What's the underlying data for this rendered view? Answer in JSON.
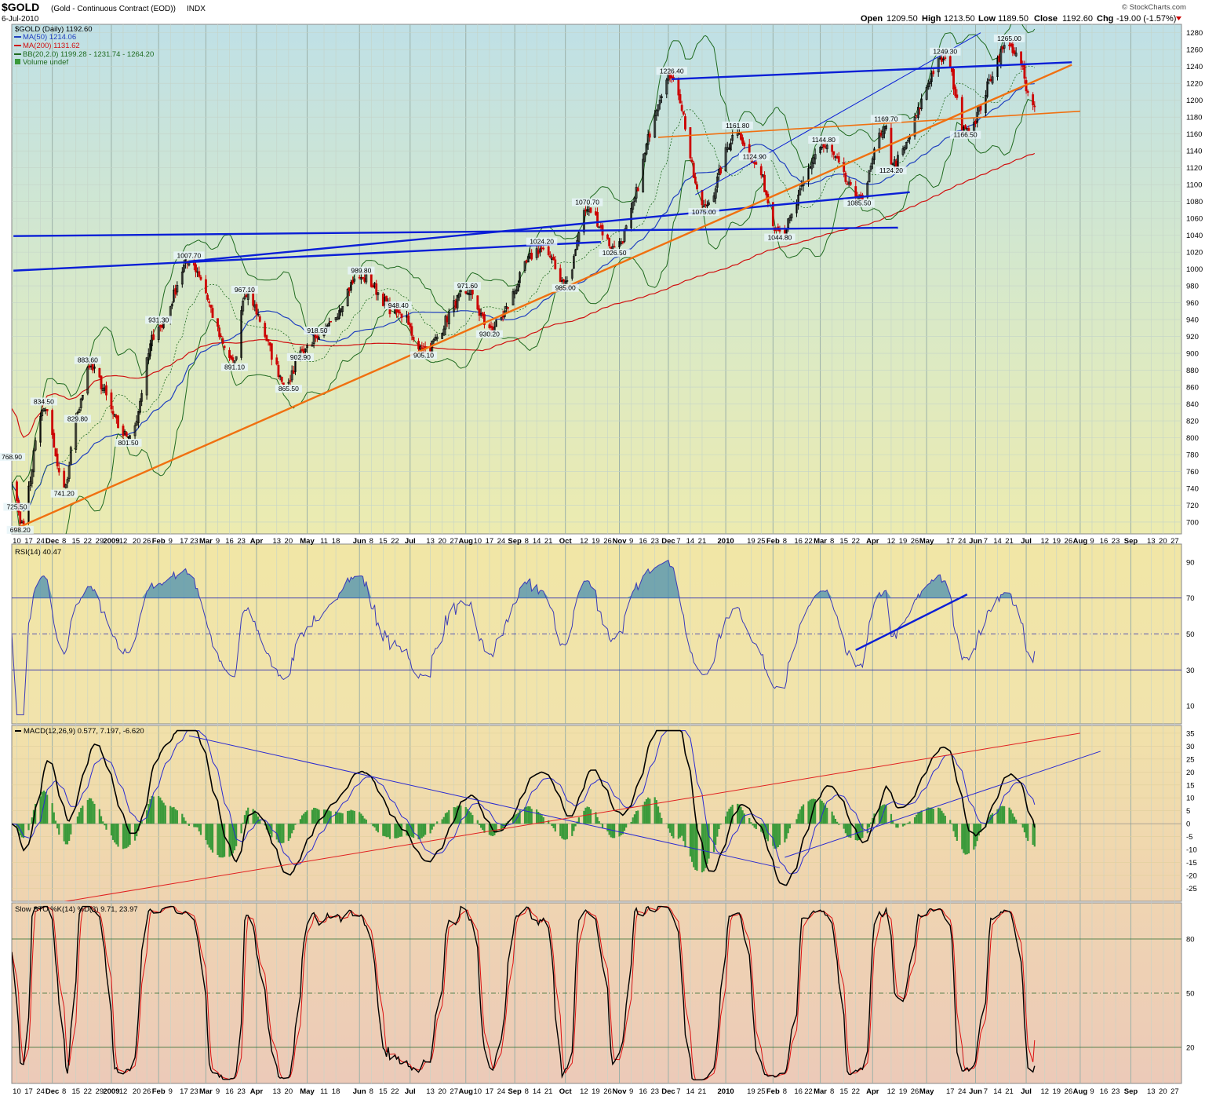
{
  "header": {
    "symbol": "$GOLD",
    "name": "(Gold - Continuous Contract (EOD))",
    "exchange": "INDX",
    "date": "6-Jul-2010",
    "brand": "© StockCharts.com",
    "open_label": "Open",
    "open": "1209.50",
    "high_label": "High",
    "high": "1213.50",
    "low_label": "Low",
    "low": "1189.50",
    "close_label": "Close",
    "close": "1192.60",
    "chg_label": "Chg",
    "chg": "-19.00 (-1.57%)"
  },
  "colors": {
    "price": "#222222",
    "up_candle": "#000000",
    "down_candle": "#cc0000",
    "ma50": "#1f3fbf",
    "ma200": "#d01010",
    "bb": "#1f6a1f",
    "trend_blue": "#0a1fd6",
    "trend_orange": "#f07010",
    "rsi": "#3a3ab8",
    "macd": "#000000",
    "signal": "#2a2ad0",
    "hist": "#3a9a3a",
    "stok": "#000000",
    "stod": "#dd1111"
  },
  "chart_data": [
    {
      "panel": "price",
      "type": "candlestick",
      "legend": [
        {
          "label": "$GOLD (Daily) 1192.60",
          "color": "#000000"
        },
        {
          "label": "MA(50) 1214.06",
          "color": "#1f3fbf"
        },
        {
          "label": "MA(200) 1131.62",
          "color": "#d01010"
        },
        {
          "label": "BB(20,2.0) 1199.28 - 1231.74 - 1264.20",
          "color": "#1f6a1f"
        },
        {
          "label": "Volume undef",
          "color": "#1f6a1f"
        }
      ],
      "y_ticks": [
        700,
        720,
        740,
        760,
        780,
        800,
        820,
        840,
        860,
        880,
        900,
        920,
        940,
        960,
        980,
        1000,
        1020,
        1040,
        1060,
        1080,
        1100,
        1120,
        1140,
        1160,
        1180,
        1200,
        1220,
        1240,
        1260,
        1280
      ],
      "ylim": [
        686,
        1290
      ],
      "xlim": [
        "2008-11-07",
        "2010-10-01"
      ],
      "pivots": [
        {
          "date": "2008-11-10",
          "value": 725.5,
          "label": "725.50",
          "side": "low"
        },
        {
          "date": "2008-11-12",
          "value": 698.2,
          "label": "698.20",
          "side": "low"
        },
        {
          "date": "2008-11-07",
          "value": 768.9,
          "label": "768.90",
          "side": "high"
        },
        {
          "date": "2008-11-26",
          "value": 834.5,
          "label": "834.50",
          "side": "high"
        },
        {
          "date": "2008-12-08",
          "value": 741.2,
          "label": "741.20",
          "side": "low"
        },
        {
          "date": "2008-12-22",
          "value": 883.6,
          "label": "883.60",
          "side": "high"
        },
        {
          "date": "2008-12-16",
          "value": 829.8,
          "label": "829.80",
          "side": "low"
        },
        {
          "date": "2009-01-15",
          "value": 801.5,
          "label": "801.50",
          "side": "low"
        },
        {
          "date": "2009-02-02",
          "value": 931.3,
          "label": "931.30",
          "side": "high"
        },
        {
          "date": "2009-02-20",
          "value": 1007.7,
          "label": "1007.70",
          "side": "high"
        },
        {
          "date": "2009-03-19",
          "value": 891.1,
          "label": "891.10",
          "side": "low"
        },
        {
          "date": "2009-03-25",
          "value": 967.1,
          "label": "967.10",
          "side": "high"
        },
        {
          "date": "2009-04-20",
          "value": 865.5,
          "label": "865.50",
          "side": "low"
        },
        {
          "date": "2009-04-27",
          "value": 902.9,
          "label": "902.90",
          "side": "low"
        },
        {
          "date": "2009-05-07",
          "value": 918.5,
          "label": "918.50",
          "side": "high"
        },
        {
          "date": "2009-06-02",
          "value": 989.8,
          "label": "989.80",
          "side": "high"
        },
        {
          "date": "2009-06-24",
          "value": 948.4,
          "label": "948.40",
          "side": "high"
        },
        {
          "date": "2009-07-09",
          "value": 905.1,
          "label": "905.10",
          "side": "low"
        },
        {
          "date": "2009-08-04",
          "value": 971.6,
          "label": "971.60",
          "side": "high"
        },
        {
          "date": "2009-08-17",
          "value": 930.2,
          "label": "930.20",
          "side": "low"
        },
        {
          "date": "2009-09-17",
          "value": 1024.2,
          "label": "1024.20",
          "side": "high"
        },
        {
          "date": "2009-10-01",
          "value": 985.0,
          "label": "985.00",
          "side": "low"
        },
        {
          "date": "2009-10-14",
          "value": 1070.7,
          "label": "1070.70",
          "side": "high"
        },
        {
          "date": "2009-10-30",
          "value": 1026.5,
          "label": "1026.50",
          "side": "low"
        },
        {
          "date": "2009-12-03",
          "value": 1226.4,
          "label": "1226.40",
          "side": "high"
        },
        {
          "date": "2009-12-22",
          "value": 1075.0,
          "label": "1075.00",
          "side": "low"
        },
        {
          "date": "2010-01-11",
          "value": 1161.8,
          "label": "1161.80",
          "side": "high"
        },
        {
          "date": "2010-01-21",
          "value": 1124.9,
          "label": "1124.90",
          "side": "high"
        },
        {
          "date": "2010-02-05",
          "value": 1044.8,
          "label": "1044.80",
          "side": "low"
        },
        {
          "date": "2010-03-03",
          "value": 1144.8,
          "label": "1144.80",
          "side": "high"
        },
        {
          "date": "2010-03-24",
          "value": 1085.5,
          "label": "1085.50",
          "side": "low"
        },
        {
          "date": "2010-04-09",
          "value": 1169.7,
          "label": "1169.70",
          "side": "high"
        },
        {
          "date": "2010-04-12",
          "value": 1124.2,
          "label": "1124.20",
          "side": "low"
        },
        {
          "date": "2010-05-14",
          "value": 1249.3,
          "label": "1249.30",
          "side": "high"
        },
        {
          "date": "2010-05-26",
          "value": 1166.5,
          "label": "1166.50",
          "side": "low"
        },
        {
          "date": "2010-06-21",
          "value": 1265.0,
          "label": "1265.00",
          "side": "high"
        }
      ],
      "last_close": {
        "date": "2010-07-06",
        "value": 1192.6
      },
      "trendlines": [
        {
          "color": "#0a1fd6",
          "width": 2.4,
          "from": [
            "2008-11-08",
            1039
          ],
          "to": [
            "2010-04-16",
            1049
          ]
        },
        {
          "color": "#0a1fd6",
          "width": 2.4,
          "from": [
            "2008-11-08",
            998
          ],
          "to": [
            "2009-10-22",
            1032
          ]
        },
        {
          "color": "#0a1fd6",
          "width": 2.4,
          "from": [
            "2009-02-20",
            1009
          ],
          "to": [
            "2010-04-23",
            1091
          ]
        },
        {
          "color": "#0a1fd6",
          "width": 2.4,
          "from": [
            "2009-12-03",
            1225
          ],
          "to": [
            "2010-07-28",
            1245
          ]
        },
        {
          "color": "#0a1fd6",
          "width": 1,
          "from": [
            "2009-12-17",
            1088
          ],
          "to": [
            "2010-06-04",
            1280
          ]
        },
        {
          "color": "#f07010",
          "width": 2.4,
          "from": [
            "2008-11-08",
            691
          ],
          "to": [
            "2010-07-28",
            1242
          ]
        },
        {
          "color": "#f07010",
          "width": 1.6,
          "from": [
            "2009-11-25",
            1156
          ],
          "to": [
            "2010-08-02",
            1187
          ]
        }
      ]
    },
    {
      "panel": "rsi",
      "type": "line",
      "legend": [
        {
          "label": "RSI(14) 40.47",
          "color": "#3a3ab8"
        }
      ],
      "y_ticks": [
        10,
        30,
        50,
        70,
        90
      ],
      "ylim": [
        0,
        100
      ],
      "levels": [
        30,
        50,
        70
      ],
      "last": 40.47,
      "trendline": {
        "from": [
          "2010-03-22",
          41
        ],
        "to": [
          "2010-05-27",
          72
        ]
      }
    },
    {
      "panel": "macd",
      "type": "line+histogram",
      "legend": [
        {
          "label": "MACD(12,26,9) 0.577, 7.197, -6.620",
          "color": "#000000"
        }
      ],
      "macd_last": 0.577,
      "signal_last": 7.197,
      "hist_last": -6.62,
      "y_ticks": [
        -25,
        -20,
        -15,
        -10,
        -5,
        0,
        5,
        10,
        15,
        20,
        25,
        30,
        35
      ],
      "ylim": [
        -30,
        38
      ],
      "trendlines": [
        {
          "color": "#2a2ad0",
          "from": [
            "2009-02-20",
            34
          ],
          "to": [
            "2010-02-05",
            -17
          ]
        },
        {
          "color": "#e02020",
          "from": [
            "2008-11-30",
            -31
          ],
          "to": [
            "2010-08-02",
            35
          ]
        },
        {
          "color": "#2a2ad0",
          "from": [
            "2010-02-08",
            -13
          ],
          "to": [
            "2010-08-14",
            28
          ]
        }
      ]
    },
    {
      "panel": "stochastic",
      "type": "line",
      "legend": [
        {
          "label": "Slow STO %K(14) %D(3) 9.71, 23.97",
          "color": "#000000"
        }
      ],
      "k_last": 9.71,
      "d_last": 23.97,
      "y_ticks": [
        20,
        50,
        80
      ],
      "ylim": [
        0,
        100
      ],
      "levels": [
        20,
        50,
        80
      ]
    }
  ],
  "x_axis": {
    "ticks": [
      [
        "2008-11-10",
        "10"
      ],
      [
        "2008-11-17",
        "17"
      ],
      [
        "2008-11-24",
        "24"
      ],
      [
        "2008-12-01",
        "Dec"
      ],
      [
        "2008-12-08",
        "8"
      ],
      [
        "2008-12-15",
        "15"
      ],
      [
        "2008-12-22",
        "22"
      ],
      [
        "2008-12-29",
        "29"
      ],
      [
        "2009-01-05",
        "2009"
      ],
      [
        "2009-01-12",
        "12"
      ],
      [
        "2009-01-20",
        "20"
      ],
      [
        "2009-01-26",
        "26"
      ],
      [
        "2009-02-02",
        "Feb"
      ],
      [
        "2009-02-09",
        "9"
      ],
      [
        "2009-02-17",
        "17"
      ],
      [
        "2009-02-23",
        "23"
      ],
      [
        "2009-03-02",
        "Mar"
      ],
      [
        "2009-03-09",
        "9"
      ],
      [
        "2009-03-16",
        "16"
      ],
      [
        "2009-03-23",
        "23"
      ],
      [
        "2009-04-01",
        "Apr"
      ],
      [
        "2009-04-13",
        "13"
      ],
      [
        "2009-04-20",
        "20"
      ],
      [
        "2009-05-01",
        "May"
      ],
      [
        "2009-05-11",
        "11"
      ],
      [
        "2009-05-18",
        "18"
      ],
      [
        "2009-06-01",
        "Jun"
      ],
      [
        "2009-06-08",
        "8"
      ],
      [
        "2009-06-15",
        "15"
      ],
      [
        "2009-06-22",
        "22"
      ],
      [
        "2009-07-01",
        "Jul"
      ],
      [
        "2009-07-13",
        "13"
      ],
      [
        "2009-07-20",
        "20"
      ],
      [
        "2009-07-27",
        "27"
      ],
      [
        "2009-08-03",
        "Aug"
      ],
      [
        "2009-08-10",
        "10"
      ],
      [
        "2009-08-17",
        "17"
      ],
      [
        "2009-08-24",
        "24"
      ],
      [
        "2009-09-01",
        "Sep"
      ],
      [
        "2009-09-08",
        "8"
      ],
      [
        "2009-09-14",
        "14"
      ],
      [
        "2009-09-21",
        "21"
      ],
      [
        "2009-10-01",
        "Oct"
      ],
      [
        "2009-10-12",
        "12"
      ],
      [
        "2009-10-19",
        "19"
      ],
      [
        "2009-10-26",
        "26"
      ],
      [
        "2009-11-02",
        "Nov"
      ],
      [
        "2009-11-09",
        "9"
      ],
      [
        "2009-11-16",
        "16"
      ],
      [
        "2009-11-23",
        "23"
      ],
      [
        "2009-12-01",
        "Dec"
      ],
      [
        "2009-12-07",
        "7"
      ],
      [
        "2009-12-14",
        "14"
      ],
      [
        "2009-12-21",
        "21"
      ],
      [
        "2010-01-04",
        "2010"
      ],
      [
        "2010-01-19",
        "19"
      ],
      [
        "2010-01-25",
        "25"
      ],
      [
        "2010-02-01",
        "Feb"
      ],
      [
        "2010-02-08",
        "8"
      ],
      [
        "2010-02-16",
        "16"
      ],
      [
        "2010-02-22",
        "22"
      ],
      [
        "2010-03-01",
        "Mar"
      ],
      [
        "2010-03-08",
        "8"
      ],
      [
        "2010-03-15",
        "15"
      ],
      [
        "2010-03-22",
        "22"
      ],
      [
        "2010-04-01",
        "Apr"
      ],
      [
        "2010-04-12",
        "12"
      ],
      [
        "2010-04-19",
        "19"
      ],
      [
        "2010-04-26",
        "26"
      ],
      [
        "2010-05-03",
        "May"
      ],
      [
        "2010-05-17",
        "17"
      ],
      [
        "2010-05-24",
        "24"
      ],
      [
        "2010-06-01",
        "Jun"
      ],
      [
        "2010-06-07",
        "7"
      ],
      [
        "2010-06-14",
        "14"
      ],
      [
        "2010-06-21",
        "21"
      ],
      [
        "2010-07-01",
        "Jul"
      ],
      [
        "2010-07-12",
        "12"
      ],
      [
        "2010-07-19",
        "19"
      ],
      [
        "2010-07-26",
        "26"
      ],
      [
        "2010-08-02",
        "Aug"
      ],
      [
        "2010-08-09",
        "9"
      ],
      [
        "2010-08-16",
        "16"
      ],
      [
        "2010-08-23",
        "23"
      ],
      [
        "2010-09-01",
        "Sep"
      ],
      [
        "2010-09-13",
        "13"
      ],
      [
        "2010-09-20",
        "20"
      ],
      [
        "2010-09-27",
        "27"
      ]
    ],
    "major": [
      "Dec",
      "2009",
      "Feb",
      "Mar",
      "Apr",
      "May",
      "Jun",
      "Jul",
      "Aug",
      "Sep",
      "Oct",
      "Nov",
      "2010"
    ]
  }
}
